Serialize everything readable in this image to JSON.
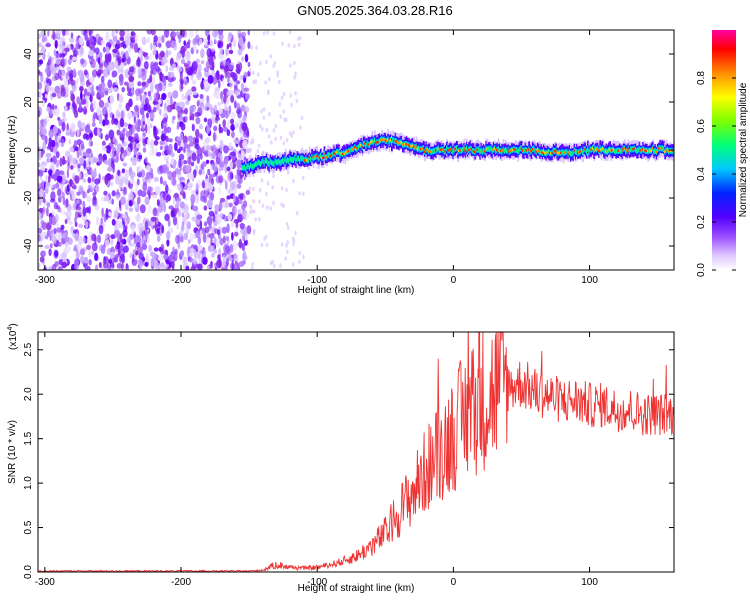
{
  "title": "GN05.2025.364.03.28.R16",
  "chart_data": [
    {
      "type": "heatmap",
      "name": "spectrum",
      "xlabel": "Height of straight line (km)",
      "ylabel": "Frequency (Hz)",
      "xlim": [
        -305,
        162
      ],
      "ylim": [
        -50,
        50
      ],
      "x_ticks": [
        -300,
        -200,
        -100,
        0,
        100
      ],
      "y_ticks": [
        -40,
        -20,
        0,
        20,
        40
      ],
      "trace": {
        "x": [
          -155,
          -150,
          -140,
          -130,
          -120,
          -110,
          -100,
          -90,
          -80,
          -70,
          -60,
          -50,
          -40,
          -30,
          -20,
          -10,
          0,
          10,
          20,
          30,
          40,
          50,
          60,
          70,
          80,
          90,
          100,
          110,
          120,
          130,
          140,
          150,
          160
        ],
        "y": [
          -8,
          -7,
          -5,
          -5,
          -4,
          -4,
          -3,
          -2,
          -1,
          1,
          3,
          4,
          3,
          1,
          0,
          0,
          0,
          0,
          0,
          0,
          0,
          0,
          0,
          -1,
          -1,
          -1,
          0,
          0,
          0,
          0,
          0,
          0,
          0
        ]
      },
      "colorbar": {
        "label": "Normalized spectral amplitude",
        "range": [
          0,
          1
        ],
        "ticks": [
          "0.0",
          "0.2",
          "0.4",
          "0.6",
          "0.8"
        ],
        "colors": [
          "#ffffff",
          "#e6d2ff",
          "#b380ff",
          "#7f00ff",
          "#0000ff",
          "#00ccff",
          "#00ff80",
          "#80ff00",
          "#ffff00",
          "#ff8000",
          "#ff0000",
          "#ff00ff"
        ]
      }
    },
    {
      "type": "line",
      "name": "snr",
      "xlabel": "Height of straight line (km)",
      "ylabel": "SNR (10 * v/v)",
      "scale_label": "(x10",
      "scale_exp": "4",
      "scale_close": ")",
      "xlim": [
        -305,
        162
      ],
      "ylim": [
        0,
        27000
      ],
      "x_ticks": [
        -300,
        -200,
        -100,
        0,
        100
      ],
      "y_ticks": [
        "0.0",
        "0.5",
        "1.0",
        "1.5",
        "2.0",
        "2.5"
      ],
      "series": [
        {
          "color": "#ee3333",
          "x": [
            -305,
            -250,
            -200,
            -150,
            -140,
            -130,
            -120,
            -110,
            -100,
            -90,
            -80,
            -70,
            -60,
            -50,
            -40,
            -30,
            -20,
            -10,
            0,
            10,
            20,
            30,
            40,
            50,
            60,
            70,
            80,
            90,
            100,
            110,
            120,
            130,
            140,
            150,
            162
          ],
          "y": [
            100,
            100,
            100,
            100,
            200,
            800,
            500,
            400,
            500,
            800,
            1200,
            1800,
            2800,
            4200,
            6500,
            8500,
            11000,
            13000,
            15000,
            17000,
            18500,
            19500,
            20500,
            21000,
            20000,
            19500,
            19000,
            19000,
            18500,
            18500,
            18000,
            18000,
            17500,
            17500,
            17500
          ]
        }
      ]
    }
  ]
}
